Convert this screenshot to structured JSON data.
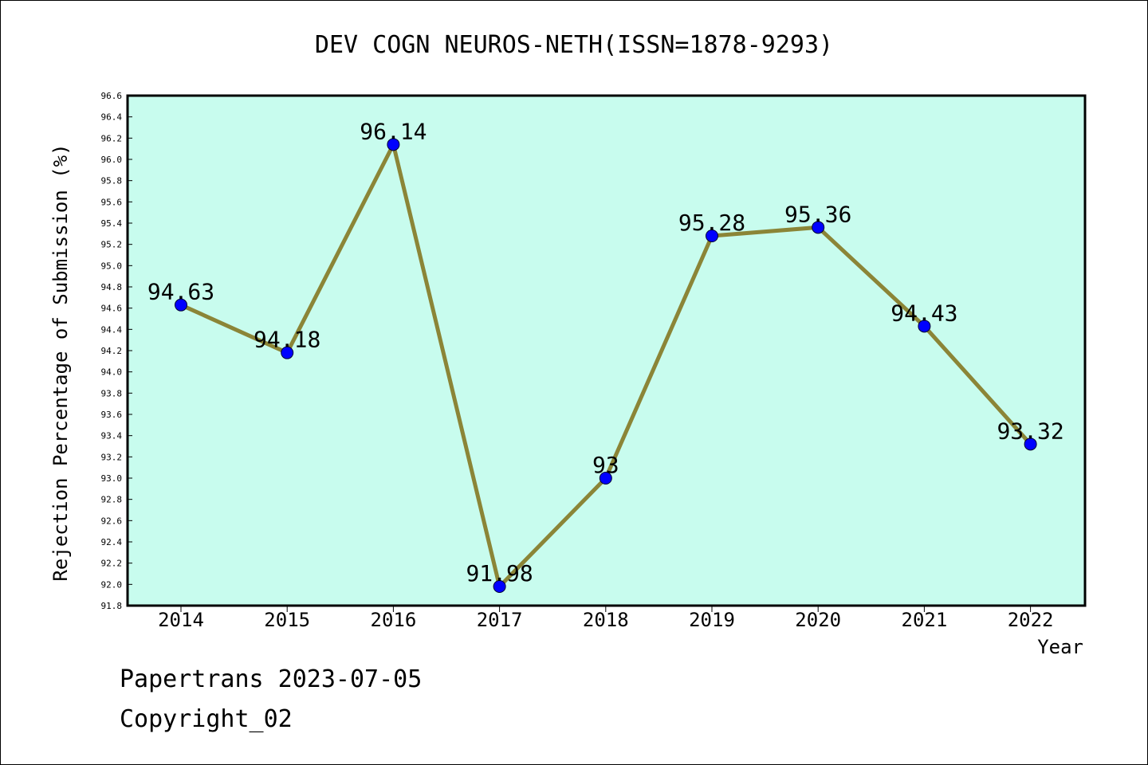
{
  "chart_data": {
    "type": "line",
    "title": "DEV COGN NEUROS-NETH(ISSN=1878-9293)",
    "xlabel": "Year",
    "ylabel": "Rejection Percentage of Submission (%)",
    "categories": [
      "2014",
      "2015",
      "2016",
      "2017",
      "2018",
      "2019",
      "2020",
      "2021",
      "2022"
    ],
    "series": [
      {
        "values": [
          94.63,
          94.18,
          96.14,
          91.98,
          93,
          95.28,
          95.36,
          94.43,
          93.32
        ]
      }
    ],
    "data_labels": [
      "94.63",
      "94.18",
      "96.14",
      "91.98",
      "93",
      "95.28",
      "95.36",
      "94.43",
      "93.32"
    ],
    "ylim": [
      91.8,
      96.6
    ],
    "yticks": [
      "91.8",
      "92.0",
      "92.2",
      "92.4",
      "92.6",
      "92.8",
      "93.0",
      "93.2",
      "93.4",
      "93.6",
      "93.8",
      "94.0",
      "94.2",
      "94.4",
      "94.6",
      "94.8",
      "95.0",
      "95.2",
      "95.4",
      "95.6",
      "95.8",
      "96.0",
      "96.2",
      "96.4",
      "96.6"
    ],
    "grid": false,
    "colors": {
      "plot_background": "#c8fcee",
      "line": "#8b8537",
      "marker": "#0000ff"
    }
  },
  "footer": {
    "line1": "Papertrans 2023-07-05",
    "line2": "Copyright_02"
  }
}
